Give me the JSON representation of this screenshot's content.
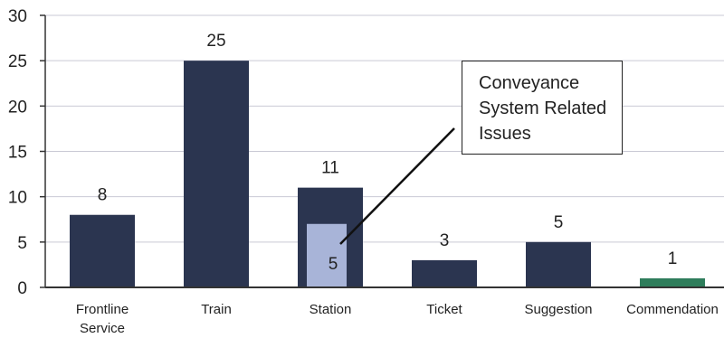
{
  "chart_data": {
    "type": "bar",
    "categories": [
      "Frontline Service",
      "Train",
      "Station",
      "Ticket",
      "Suggestion",
      "Commendation"
    ],
    "category_lines": [
      [
        "Frontline",
        "Service"
      ],
      [
        "Train"
      ],
      [
        "Station"
      ],
      [
        "Ticket"
      ],
      [
        "Suggestion"
      ],
      [
        "Commendation"
      ]
    ],
    "values": [
      8,
      25,
      11,
      3,
      5,
      1
    ],
    "data_labels": [
      "8",
      "25",
      "11",
      "3",
      "5",
      "1"
    ],
    "sub_segment": {
      "category": "Station",
      "value": 5,
      "label": "5",
      "color": "#a8b4d8"
    },
    "bar_colors": [
      "#2b3550",
      "#2b3550",
      "#2b3550",
      "#2b3550",
      "#2b3550",
      "#2e7d5b"
    ],
    "ylim": [
      0,
      30
    ],
    "yticks": [
      0,
      5,
      10,
      15,
      20,
      25,
      30
    ],
    "grid": true,
    "annotation": "Conveyance System Related Issues",
    "annotation_lines": [
      "Conveyance",
      "System Related",
      "Issues"
    ],
    "title": "",
    "xlabel": "",
    "ylabel": ""
  }
}
